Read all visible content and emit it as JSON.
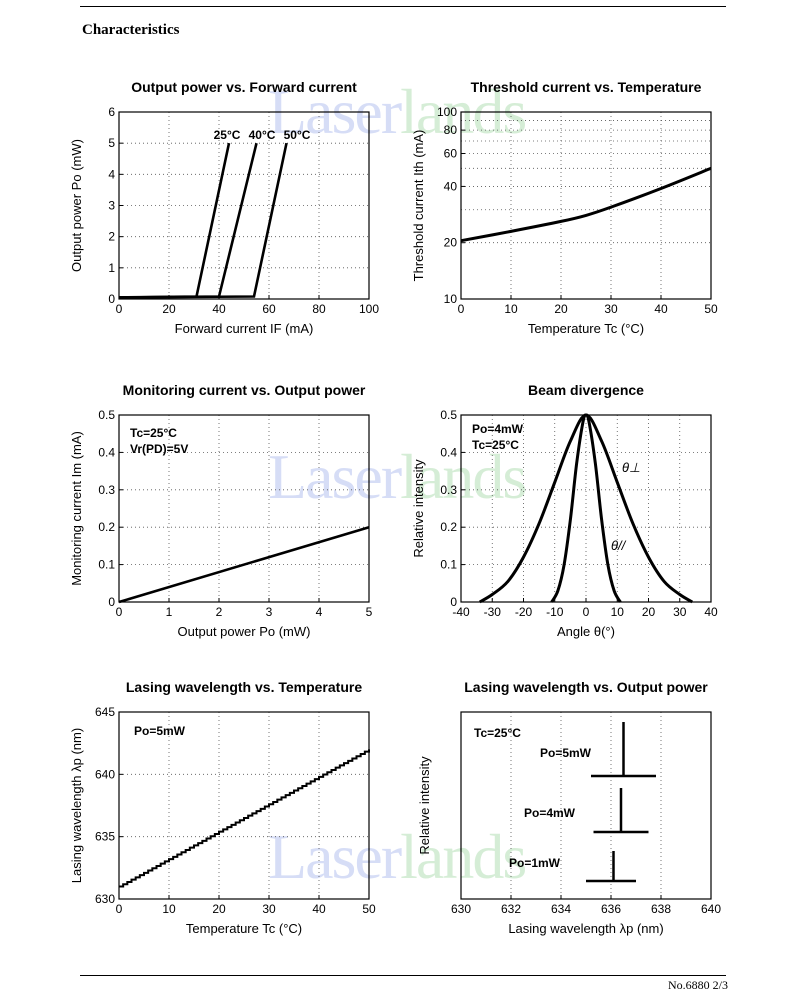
{
  "header": {
    "section_title": "Characteristics"
  },
  "footer": {
    "doc_ref": "No.6880 2/3"
  },
  "watermark": {
    "part1": "Laser",
    "part2": "lands",
    "color1": "#4a67d8",
    "color2": "#45b04a"
  },
  "chart_data": [
    {
      "id": "c1",
      "type": "line",
      "title": "Output power vs. Forward current",
      "xlabel": "Forward current  IF (mA)",
      "ylabel": "Output power  Po (mW)",
      "xlim": [
        0,
        100
      ],
      "ylim": [
        0,
        6
      ],
      "xticks": [
        0,
        20,
        40,
        60,
        80,
        100
      ],
      "yticks": [
        0,
        1,
        2,
        3,
        4,
        5,
        6
      ],
      "series": [
        {
          "name": "25°C",
          "x": [
            0,
            31,
            44
          ],
          "y": [
            0.05,
            0.08,
            5.0
          ]
        },
        {
          "name": "40°C",
          "x": [
            0,
            40,
            55
          ],
          "y": [
            0.05,
            0.08,
            5.0
          ]
        },
        {
          "name": "50°C",
          "x": [
            0,
            54,
            67
          ],
          "y": [
            0.05,
            0.08,
            5.0
          ]
        }
      ],
      "annotations": [
        "25°C",
        "40°C",
        "50°C"
      ]
    },
    {
      "id": "c2",
      "type": "line",
      "title": "Threshold current vs. Temperature",
      "xlabel": "Temperature  Tc (°C)",
      "ylabel": "Threshold current  Ith (mA)",
      "xlim": [
        0,
        50
      ],
      "ylim": [
        10,
        100
      ],
      "yscale": "log",
      "xticks": [
        0,
        10,
        20,
        30,
        40,
        50
      ],
      "yticks": [
        10,
        20,
        40,
        60,
        80,
        100
      ],
      "series": [
        {
          "name": "Ith",
          "x": [
            0,
            10,
            20,
            25,
            30,
            40,
            50
          ],
          "y": [
            20.5,
            23,
            26,
            28,
            31,
            39,
            50
          ]
        }
      ]
    },
    {
      "id": "c3",
      "type": "line",
      "title": "Monitoring current vs. Output power",
      "xlabel": "Output power  Po (mW)",
      "ylabel": "Monitoring current  Im (mA)",
      "xlim": [
        0,
        5
      ],
      "ylim": [
        0,
        0.5
      ],
      "xticks": [
        0,
        1,
        2,
        3,
        4,
        5
      ],
      "yticks": [
        0,
        0.1,
        0.2,
        0.3,
        0.4,
        0.5
      ],
      "series": [
        {
          "name": "Im",
          "x": [
            0,
            5
          ],
          "y": [
            0,
            0.2
          ]
        }
      ],
      "annotations": [
        "Tc=25°C",
        "Vr(PD)=5V"
      ]
    },
    {
      "id": "c4",
      "type": "line",
      "title": "Beam divergence",
      "xlabel": "Angle  θ(°)",
      "ylabel": "Relative intensity",
      "xlim": [
        -40,
        40
      ],
      "ylim": [
        0,
        0.5
      ],
      "xticks": [
        -40,
        -30,
        -20,
        -10,
        0,
        10,
        20,
        30,
        40
      ],
      "yticks": [
        0,
        0.1,
        0.2,
        0.3,
        0.4,
        0.5
      ],
      "series": [
        {
          "name": "θ⊥",
          "x": [
            -34,
            -30,
            -25,
            -20,
            -15,
            -10,
            -5,
            0,
            5,
            10,
            15,
            20,
            25,
            30,
            34
          ],
          "y": [
            0.0,
            0.02,
            0.055,
            0.12,
            0.21,
            0.32,
            0.43,
            0.5,
            0.43,
            0.32,
            0.21,
            0.12,
            0.055,
            0.02,
            0.0
          ]
        },
        {
          "name": "θ//",
          "x": [
            -11,
            -9,
            -7,
            -5,
            -3,
            -1,
            0,
            1,
            3,
            5,
            7,
            9,
            11
          ],
          "y": [
            0.0,
            0.03,
            0.1,
            0.22,
            0.37,
            0.48,
            0.5,
            0.48,
            0.37,
            0.22,
            0.1,
            0.03,
            0.0
          ]
        }
      ],
      "annotations": [
        "Po=4mW",
        "Tc=25°C",
        "θ⊥",
        "θ//"
      ]
    },
    {
      "id": "c5",
      "type": "line",
      "title": "Lasing wavelength vs. Temperature",
      "xlabel": "Temperature  Tc (°C)",
      "ylabel": "Lasing wavelength  λp (nm)",
      "xlim": [
        0,
        50
      ],
      "ylim": [
        630,
        645
      ],
      "xticks": [
        0,
        10,
        20,
        30,
        40,
        50
      ],
      "yticks": [
        630,
        635,
        640,
        645
      ],
      "series": [
        {
          "name": "λp",
          "x": [
            0,
            50
          ],
          "y": [
            631.0,
            642.0
          ],
          "style": "staircase"
        }
      ],
      "annotations": [
        "Po=5mW"
      ]
    },
    {
      "id": "c6",
      "type": "spectrum",
      "title": "Lasing wavelength vs. Output power",
      "xlabel": "Lasing wavelength  λp (nm)",
      "ylabel": "Relative intensity",
      "xlim": [
        630,
        640
      ],
      "xticks": [
        630,
        632,
        634,
        636,
        638,
        640
      ],
      "series": [
        {
          "name": "Po=5mW",
          "peak": 636.5,
          "base": [
            635.2,
            637.8
          ]
        },
        {
          "name": "Po=4mW",
          "peak": 636.4,
          "base": [
            635.3,
            637.5
          ]
        },
        {
          "name": "Po=1mW",
          "peak": 636.1,
          "base": [
            635.0,
            637.0
          ]
        }
      ],
      "annotations": [
        "Tc=25°C",
        "Po=5mW",
        "Po=4mW",
        "Po=1mW"
      ]
    }
  ]
}
